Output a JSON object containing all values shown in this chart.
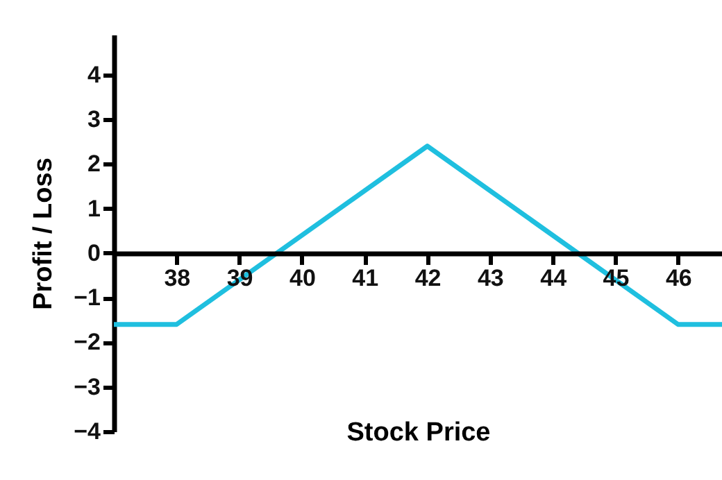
{
  "chart_data": {
    "type": "line",
    "xlabel": "Stock Price",
    "ylabel": "Profit / Loss",
    "x": [
      37,
      38,
      42,
      46,
      46.7
    ],
    "series": [
      {
        "color": "#1fbfdf",
        "values": [
          -1.6,
          -1.6,
          2.4,
          -1.6,
          -1.6
        ]
      }
    ],
    "xlim": [
      37,
      46.7
    ],
    "xticks": [
      38,
      39,
      40,
      41,
      42,
      43,
      44,
      45,
      46
    ],
    "ylim": [
      -4,
      4.9
    ],
    "yticks": [
      -4,
      -3,
      -2,
      -1,
      0,
      1,
      2,
      3,
      4
    ],
    "grid": false,
    "legend": false,
    "marker": "none",
    "line_style": "solid"
  }
}
